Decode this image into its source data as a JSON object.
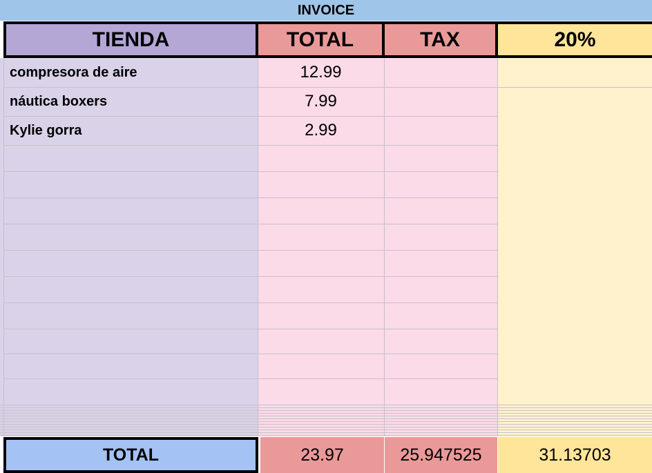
{
  "header": {
    "title": "INVOICE"
  },
  "table": {
    "columns": [
      "TIENDA",
      "TOTAL",
      "TAX",
      "20%"
    ],
    "rows": [
      [
        "compresora de aire",
        12.99
      ],
      [
        "náutica boxers",
        7.99
      ],
      [
        "Kylie gorra",
        2.99
      ]
    ],
    "total_row": [
      "TOTAL",
      23.97,
      25.947525,
      31.13703
    ]
  }
}
